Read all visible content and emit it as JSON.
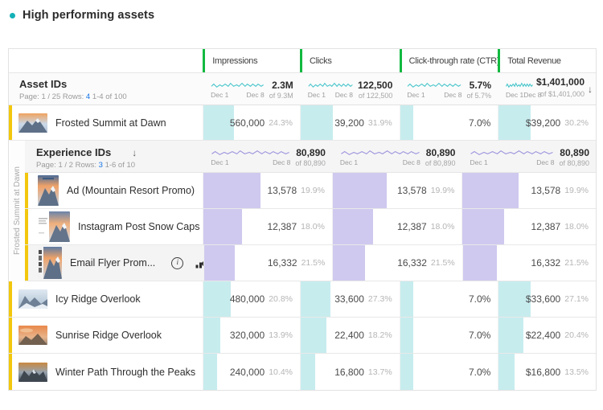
{
  "title": {
    "text": "High performing assets"
  },
  "columns": [
    {
      "label": "Impressions"
    },
    {
      "label": "Clicks"
    },
    {
      "label": "Click-through rate (CTR)"
    },
    {
      "label": "Total Revenue"
    }
  ],
  "asset_table": {
    "header": {
      "title": "Asset IDs",
      "page_label": "Page: 1 / 25 Rows:",
      "rows_count": "4",
      "range_label": "1-4 of 100",
      "date_start": "Dec 1",
      "date_end": "Dec 8",
      "sort_icon": "↓",
      "totals": [
        {
          "value": "2.3M",
          "of": "of 9.3M"
        },
        {
          "value": "122,500",
          "of": "of 122,500"
        },
        {
          "value": "5.7%",
          "of": "of 5.7%"
        },
        {
          "value": "$1,401,000",
          "of": "of $1,401,000"
        }
      ]
    },
    "rows": [
      {
        "name": "Frosted Summit at Dawn",
        "cells": [
          {
            "value": "560,000",
            "pct": "24.3%",
            "bar": 38
          },
          {
            "value": "39,200",
            "pct": "31.9%",
            "bar": 40
          },
          {
            "value": "7.0%",
            "pct": "",
            "bar": 16
          },
          {
            "value": "$39,200",
            "pct": "30.2%",
            "bar": 40
          }
        ]
      },
      {
        "name": "Icy Ridge Overlook",
        "cells": [
          {
            "value": "480,000",
            "pct": "20.8%",
            "bar": 34
          },
          {
            "value": "33,600",
            "pct": "27.3%",
            "bar": 37
          },
          {
            "value": "7.0%",
            "pct": "",
            "bar": 16
          },
          {
            "value": "$33,600",
            "pct": "27.1%",
            "bar": 40
          }
        ]
      },
      {
        "name": "Sunrise Ridge Overlook",
        "cells": [
          {
            "value": "320,000",
            "pct": "13.9%",
            "bar": 21
          },
          {
            "value": "22,400",
            "pct": "18.2%",
            "bar": 32
          },
          {
            "value": "7.0%",
            "pct": "",
            "bar": 16
          },
          {
            "value": "$22,400",
            "pct": "20.4%",
            "bar": 31
          }
        ]
      },
      {
        "name": "Winter Path Through the Peaks",
        "cells": [
          {
            "value": "240,000",
            "pct": "10.4%",
            "bar": 17
          },
          {
            "value": "16,800",
            "pct": "13.7%",
            "bar": 18
          },
          {
            "value": "7.0%",
            "pct": "",
            "bar": 16
          },
          {
            "value": "$16,800",
            "pct": "13.5%",
            "bar": 20
          }
        ]
      }
    ]
  },
  "experience_table": {
    "rail_label": "Frosted Summit at Dawn",
    "header": {
      "title": "Experience IDs",
      "sort_icon": "↓",
      "page_label": "Page: 1 / 2 Rows:",
      "rows_count": "3",
      "range_label": "1-6 of 10",
      "date_start": "Dec 1",
      "date_end": "Dec 8",
      "totals": [
        {
          "value": "80,890",
          "of": "of 80,890"
        },
        {
          "value": "80,890",
          "of": "of 80,890"
        },
        {
          "value": "80,890",
          "of": "of 80,890"
        }
      ]
    },
    "rows": [
      {
        "name": "Ad (Mountain Resort Promo)",
        "cells": [
          {
            "value": "13,578",
            "pct": "19.9%",
            "bar": 71
          },
          {
            "value": "13,578",
            "pct": "19.9%",
            "bar": 67
          },
          {
            "value": "13,578",
            "pct": "19.9%",
            "bar": 70
          }
        ]
      },
      {
        "name": "Instagram Post Snow Caps",
        "cells": [
          {
            "value": "12,387",
            "pct": "18.0%",
            "bar": 48
          },
          {
            "value": "12,387",
            "pct": "18.0%",
            "bar": 50
          },
          {
            "value": "12,387",
            "pct": "18.0%",
            "bar": 52
          }
        ]
      },
      {
        "name": "Email Flyer Prom...",
        "actions": {
          "info": "i",
          "close": "✕"
        },
        "cells": [
          {
            "value": "16,332",
            "pct": "21.5%",
            "bar": 38
          },
          {
            "value": "16,332",
            "pct": "21.5%",
            "bar": 40
          },
          {
            "value": "16,332",
            "pct": "21.5%",
            "bar": 42
          }
        ]
      }
    ]
  },
  "colors": {
    "accent_green": "#12B940",
    "teal_spark": "#4AC6CC",
    "teal_bar": "#C7ECEE",
    "purple_spark": "#9D95DD",
    "purple_bar": "#CFC9EF",
    "row_accent_yellow": "#F2C70E",
    "link_blue": "#1473E6",
    "bullet_teal": "#14B1B7"
  }
}
